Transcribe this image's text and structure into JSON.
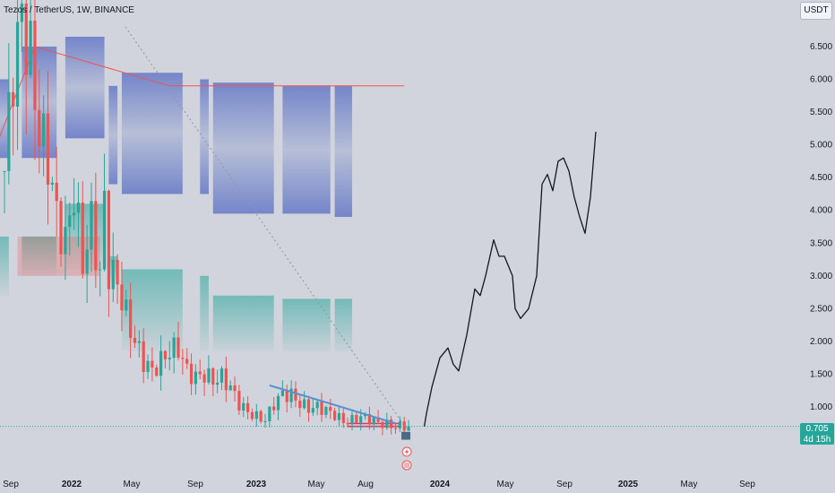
{
  "header": {
    "title": "Tezos / TetherUS, 1W, BINANCE",
    "currency_button": "USDT"
  },
  "price": {
    "last_value": "0.705",
    "countdown": "4d 15h"
  },
  "colors": {
    "up": "#26a69a",
    "down": "#ef5350",
    "background": "#d1d4dc",
    "profile_blue": "#5c6bc0",
    "profile_green": "#26a69a",
    "drawing": "#131722",
    "trendline": "#5b8fd1"
  },
  "chart_data": {
    "type": "candlestick",
    "title": "Tezos / TetherUS, 1W, BINANCE",
    "xlabel": "",
    "ylabel": "",
    "x_tick_labels": [
      "Sep",
      "2022",
      "May",
      "Sep",
      "2023",
      "May",
      "Aug",
      "2024",
      "May",
      "Sep",
      "2025",
      "May",
      "Sep"
    ],
    "y_tick_labels": [
      "1.000",
      "1.500",
      "2.000",
      "2.500",
      "3.000",
      "3.500",
      "4.000",
      "4.500",
      "5.000",
      "5.500",
      "6.000",
      "6.500"
    ],
    "ylim": [
      0.1,
      7.3
    ],
    "grid": false,
    "last_price": 0.705,
    "close_anchors": [
      [
        0,
        4.6
      ],
      [
        2,
        6.2
      ],
      [
        3,
        6.5
      ],
      [
        4,
        7.0
      ],
      [
        6,
        6.3
      ],
      [
        8,
        5.2
      ],
      [
        10,
        4.8
      ],
      [
        12,
        3.9
      ],
      [
        14,
        3.5
      ],
      [
        16,
        4.3
      ],
      [
        18,
        3.2
      ],
      [
        20,
        3.8
      ],
      [
        22,
        3.0
      ],
      [
        23,
        4.1
      ],
      [
        24,
        3.1
      ],
      [
        26,
        2.9
      ],
      [
        28,
        2.4
      ],
      [
        30,
        2.0
      ],
      [
        32,
        1.7
      ],
      [
        34,
        1.55
      ],
      [
        36,
        1.7
      ],
      [
        38,
        1.85
      ],
      [
        40,
        1.9
      ],
      [
        42,
        1.55
      ],
      [
        44,
        1.45
      ],
      [
        46,
        1.5
      ],
      [
        48,
        1.4
      ],
      [
        50,
        1.45
      ],
      [
        52,
        1.3
      ],
      [
        54,
        1.05
      ],
      [
        56,
        0.92
      ],
      [
        58,
        0.85
      ],
      [
        60,
        0.8
      ],
      [
        62,
        1.05
      ],
      [
        64,
        1.2
      ],
      [
        66,
        1.18
      ],
      [
        68,
        1.05
      ],
      [
        70,
        0.98
      ],
      [
        72,
        1.0
      ],
      [
        74,
        0.95
      ],
      [
        76,
        0.88
      ],
      [
        78,
        0.78
      ],
      [
        80,
        0.8
      ],
      [
        82,
        0.85
      ],
      [
        84,
        0.82
      ],
      [
        86,
        0.76
      ],
      [
        88,
        0.73
      ],
      [
        90,
        0.7
      ],
      [
        92,
        0.71
      ],
      [
        93,
        0.705
      ]
    ],
    "projection_path": [
      [
        0.72,
        0.705
      ],
      [
        0.8,
        0.9
      ],
      [
        1.0,
        1.3
      ],
      [
        1.3,
        1.75
      ],
      [
        1.6,
        1.9
      ],
      [
        1.8,
        1.65
      ],
      [
        2.0,
        1.55
      ],
      [
        2.3,
        2.1
      ],
      [
        2.6,
        2.8
      ],
      [
        2.8,
        2.7
      ],
      [
        3.0,
        3.0
      ],
      [
        3.3,
        3.55
      ],
      [
        3.5,
        3.3
      ],
      [
        3.7,
        3.3
      ],
      [
        4.0,
        3.0
      ],
      [
        4.1,
        2.5
      ],
      [
        4.3,
        2.35
      ],
      [
        4.6,
        2.5
      ],
      [
        4.9,
        3.0
      ],
      [
        5.1,
        4.4
      ],
      [
        5.3,
        4.55
      ],
      [
        5.5,
        4.3
      ],
      [
        5.7,
        4.75
      ],
      [
        5.9,
        4.8
      ],
      [
        6.1,
        4.6
      ],
      [
        6.3,
        4.2
      ],
      [
        6.5,
        3.9
      ],
      [
        6.7,
        3.65
      ],
      [
        6.9,
        4.2
      ],
      [
        7.1,
        5.2
      ]
    ],
    "trendline": [
      [
        61,
        1.33
      ],
      [
        90,
        0.75
      ]
    ],
    "support_zone": [
      0.7,
      0.75
    ],
    "volume_profiles": [
      {
        "x_range": [
          -3,
          1
        ],
        "blue": [
          4.8,
          6.0
        ],
        "green": [
          2.7,
          3.6
        ]
      },
      {
        "x_range": [
          4,
          12
        ],
        "blue": [
          4.8,
          6.5
        ],
        "green": [
          3.0,
          3.6
        ]
      },
      {
        "x_range": [
          14,
          23
        ],
        "blue": [
          5.1,
          6.65
        ],
        "green": [
          3.1,
          4.1
        ]
      },
      {
        "x_range": [
          24,
          26
        ],
        "blue": [
          4.4,
          5.9
        ],
        "green": [
          2.9,
          3.3
        ]
      },
      {
        "x_range": [
          27,
          41
        ],
        "blue": [
          4.25,
          6.1
        ],
        "green": [
          1.85,
          3.1
        ]
      },
      {
        "x_range": [
          45,
          47
        ],
        "blue": [
          4.25,
          6.0
        ],
        "green": [
          1.85,
          3.0
        ]
      },
      {
        "x_range": [
          48,
          62
        ],
        "blue": [
          3.95,
          5.95
        ],
        "green": [
          1.85,
          2.7
        ]
      },
      {
        "x_range": [
          64,
          75
        ],
        "blue": [
          3.95,
          5.9
        ],
        "green": [
          1.85,
          2.65
        ]
      },
      {
        "x_range": [
          76,
          80
        ],
        "blue": [
          3.9,
          5.9
        ],
        "green": [
          1.85,
          2.65
        ]
      }
    ],
    "resistance_line": [
      [
        -3,
        4.8
      ],
      [
        7,
        6.5
      ],
      [
        38,
        5.9
      ],
      [
        92,
        5.9
      ]
    ]
  }
}
